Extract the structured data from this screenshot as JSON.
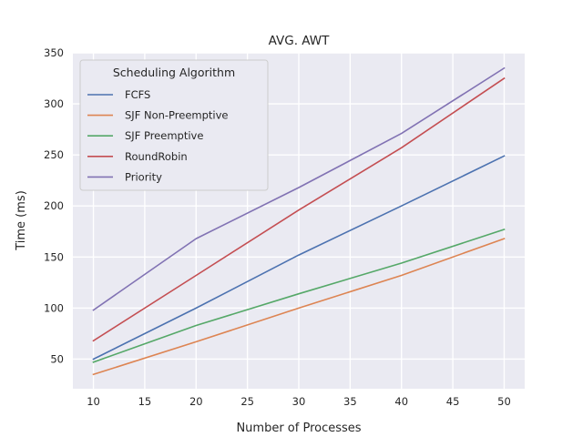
{
  "chart_data": {
    "type": "line",
    "title": "AVG. AWT",
    "xlabel": "Number of Processes",
    "ylabel": "Time (ms)",
    "x": [
      10,
      20,
      30,
      40,
      50
    ],
    "xticks": [
      10,
      15,
      20,
      25,
      30,
      35,
      40,
      45,
      50
    ],
    "yticks": [
      50,
      100,
      150,
      200,
      250,
      300,
      350
    ],
    "xlim": [
      8,
      52
    ],
    "ylim": [
      21,
      350
    ],
    "grid": true,
    "legend": {
      "title": "Scheduling Algorithm",
      "placement": "upper-left"
    },
    "series": [
      {
        "name": "FCFS",
        "color": "#4c72b0",
        "values": [
          50,
          100,
          152,
          200,
          249
        ]
      },
      {
        "name": "SJF Non-Preemptive",
        "color": "#dd8452",
        "values": [
          35,
          67,
          100,
          132,
          168
        ]
      },
      {
        "name": "SJF Preemptive",
        "color": "#55a868",
        "values": [
          47,
          83,
          114,
          144,
          177
        ]
      },
      {
        "name": "RoundRobin",
        "color": "#c44e52",
        "values": [
          68,
          132,
          196,
          257,
          325
        ]
      },
      {
        "name": "Priority",
        "color": "#8172b3",
        "values": [
          98,
          168,
          218,
          271,
          335
        ]
      }
    ]
  }
}
